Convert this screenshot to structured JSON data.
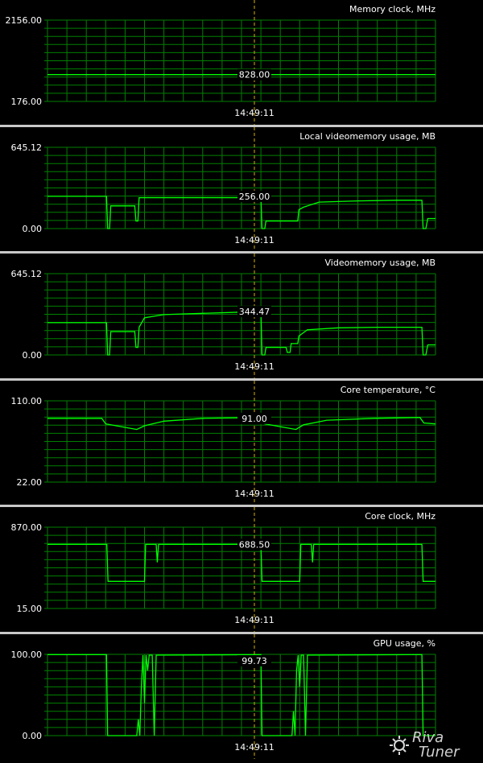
{
  "app": {
    "name": "RivaTuner hardware monitor",
    "logo_text": "Riva Tuner"
  },
  "colors": {
    "background": "#000000",
    "grid": "#008000",
    "trace": "#00ff00",
    "cursor": "#d4b000",
    "text": "#ffffff",
    "separator": "#c8c8c8"
  },
  "cursor_time": "14:49:11",
  "chart_data": [
    {
      "type": "line",
      "title": "Memory clock, MHz",
      "ymax_label": "2156.00",
      "ymin_label": "176.00",
      "ylim": [
        176,
        2156
      ],
      "current_value": "828.00",
      "series": [
        {
          "values": [
            [
              0,
              828
            ],
            [
              100,
              828
            ]
          ]
        }
      ]
    },
    {
      "type": "line",
      "title": "Local videomemory usage, MB",
      "ymax_label": "645.12",
      "ymin_label": "0.00",
      "ylim": [
        0,
        645.12
      ],
      "current_value": "256.00",
      "series": [
        {
          "values": [
            [
              0,
              256
            ],
            [
              15.2,
              256
            ],
            [
              15.5,
              0
            ],
            [
              16,
              0
            ],
            [
              16.3,
              180
            ],
            [
              22.5,
              180
            ],
            [
              22.8,
              60
            ],
            [
              23.3,
              60
            ],
            [
              23.6,
              245
            ],
            [
              55,
              245
            ],
            [
              55.3,
              0
            ],
            [
              56,
              0
            ],
            [
              56.3,
              60
            ],
            [
              64.5,
              60
            ],
            [
              64.8,
              150
            ],
            [
              66,
              170
            ],
            [
              70,
              210
            ],
            [
              80,
              220
            ],
            [
              90,
              225
            ],
            [
              96.5,
              225
            ],
            [
              96.8,
              0
            ],
            [
              97.5,
              0
            ],
            [
              98,
              80
            ],
            [
              100,
              80
            ]
          ]
        }
      ]
    },
    {
      "type": "line",
      "title": "Videomemory usage, MB",
      "ymax_label": "645.12",
      "ymin_label": "0.00",
      "ylim": [
        0,
        645.12
      ],
      "current_value": "344.47",
      "series": [
        {
          "values": [
            [
              0,
              256
            ],
            [
              15.2,
              256
            ],
            [
              15.5,
              0
            ],
            [
              16,
              0
            ],
            [
              16.3,
              185
            ],
            [
              22.5,
              185
            ],
            [
              22.8,
              60
            ],
            [
              23.3,
              60
            ],
            [
              23.6,
              220
            ],
            [
              25,
              295
            ],
            [
              30,
              320
            ],
            [
              40,
              330
            ],
            [
              50,
              340
            ],
            [
              55,
              344
            ],
            [
              55.3,
              0
            ],
            [
              56,
              0
            ],
            [
              56.3,
              60
            ],
            [
              61.5,
              60
            ],
            [
              61.8,
              20
            ],
            [
              62.5,
              20
            ],
            [
              62.8,
              90
            ],
            [
              64.5,
              90
            ],
            [
              64.8,
              150
            ],
            [
              67,
              200
            ],
            [
              75,
              215
            ],
            [
              85,
              220
            ],
            [
              96.5,
              220
            ],
            [
              96.8,
              0
            ],
            [
              97.5,
              0
            ],
            [
              98,
              80
            ],
            [
              100,
              80
            ]
          ]
        }
      ]
    },
    {
      "type": "line",
      "title": "Core temperature, °C",
      "ymax_label": "110.00",
      "ymin_label": "22.00",
      "ylim": [
        22,
        110
      ],
      "current_value": "91.00",
      "series": [
        {
          "values": [
            [
              0,
              91
            ],
            [
              7,
              91
            ],
            [
              14,
              91
            ],
            [
              15,
              85
            ],
            [
              19,
              82
            ],
            [
              23,
              79
            ],
            [
              25,
              83
            ],
            [
              30,
              88
            ],
            [
              40,
              91
            ],
            [
              55,
              92
            ],
            [
              56,
              85
            ],
            [
              60,
              82
            ],
            [
              64,
              79
            ],
            [
              66,
              84
            ],
            [
              72,
              89
            ],
            [
              84,
              91
            ],
            [
              96,
              92
            ],
            [
              97,
              86
            ],
            [
              100,
              85
            ]
          ]
        }
      ]
    },
    {
      "type": "line",
      "title": "Core clock, MHz",
      "ymax_label": "870.00",
      "ymin_label": "15.00",
      "ylim": [
        15,
        870
      ],
      "current_value": "688.50",
      "series": [
        {
          "values": [
            [
              0,
              688.5
            ],
            [
              15.3,
              688.5
            ],
            [
              15.6,
              300
            ],
            [
              25,
              300
            ],
            [
              25.3,
              688.5
            ],
            [
              28,
              688.5
            ],
            [
              28.3,
              500
            ],
            [
              28.6,
              688.5
            ],
            [
              55,
              688.5
            ],
            [
              55.3,
              300
            ],
            [
              65,
              300
            ],
            [
              65.3,
              688.5
            ],
            [
              68,
              688.5
            ],
            [
              68.3,
              500
            ],
            [
              68.6,
              688.5
            ],
            [
              96.5,
              688.5
            ],
            [
              96.8,
              300
            ],
            [
              100,
              300
            ]
          ]
        }
      ]
    },
    {
      "type": "line",
      "title": "GPU usage, %",
      "ymax_label": "100.00",
      "ymin_label": "0.00",
      "ylim": [
        0,
        100
      ],
      "current_value": "99.73",
      "series": [
        {
          "values": [
            [
              0,
              99.7
            ],
            [
              15.2,
              99.7
            ],
            [
              15.5,
              0
            ],
            [
              23,
              0
            ],
            [
              23.4,
              20
            ],
            [
              23.8,
              0
            ],
            [
              24.2,
              60
            ],
            [
              24.6,
              99
            ],
            [
              25,
              40
            ],
            [
              25.4,
              99
            ],
            [
              25.8,
              80
            ],
            [
              26.2,
              99
            ],
            [
              27,
              99
            ],
            [
              27.5,
              0
            ],
            [
              28,
              99
            ],
            [
              55,
              99.7
            ],
            [
              55.3,
              0
            ],
            [
              63,
              0
            ],
            [
              63.4,
              30
            ],
            [
              63.8,
              0
            ],
            [
              64.2,
              80
            ],
            [
              64.6,
              99
            ],
            [
              65,
              60
            ],
            [
              65.4,
              99
            ],
            [
              66,
              99
            ],
            [
              66.5,
              0
            ],
            [
              67,
              99
            ],
            [
              96.5,
              99.7
            ],
            [
              96.8,
              0
            ],
            [
              100,
              0
            ]
          ]
        }
      ]
    }
  ]
}
